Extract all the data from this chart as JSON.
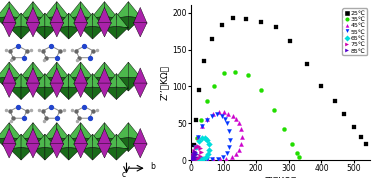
{
  "xlabel": "Z’（KΩ）",
  "ylabel": "Z’’（KΩ）",
  "xlim": [
    0,
    550
  ],
  "ylim": [
    0,
    210
  ],
  "xticks": [
    0,
    100,
    200,
    300,
    400,
    500
  ],
  "yticks": [
    0,
    50,
    100,
    150,
    200
  ],
  "bg_color": "#ffffff",
  "crystal_bg": "#e8f0f8",
  "green_dark": "#1a6b1a",
  "green_light": "#4db84d",
  "purple": "#aa22aa",
  "series": {
    "25C": {
      "color": "black",
      "marker": "s",
      "x": [
        8,
        15,
        25,
        40,
        65,
        95,
        130,
        170,
        215,
        260,
        305,
        355,
        400,
        440,
        470,
        500,
        520,
        535
      ],
      "y": [
        20,
        55,
        95,
        135,
        165,
        183,
        193,
        192,
        188,
        180,
        162,
        130,
        100,
        80,
        62,
        45,
        32,
        22
      ]
    },
    "35C": {
      "color": "#22dd00",
      "marker": "o",
      "x": [
        8,
        18,
        30,
        50,
        70,
        100,
        135,
        175,
        215,
        255,
        285,
        310,
        325,
        330
      ],
      "y": [
        8,
        30,
        55,
        80,
        100,
        118,
        120,
        115,
        95,
        68,
        42,
        22,
        10,
        5
      ]
    },
    "45C": {
      "color": "#cc00cc",
      "marker": "^",
      "x": [
        5,
        12,
        22,
        35,
        50,
        68,
        85,
        100,
        115,
        128,
        138,
        148,
        155,
        158,
        155,
        148,
        138,
        125,
        108,
        88,
        68,
        50,
        35,
        22,
        12
      ],
      "y": [
        5,
        18,
        32,
        46,
        56,
        62,
        65,
        65,
        63,
        60,
        56,
        50,
        42,
        32,
        22,
        14,
        8,
        4,
        2,
        1,
        1,
        1,
        1,
        1,
        1
      ]
    },
    "55C": {
      "color": "#0033ff",
      "marker": "v",
      "x": [
        5,
        12,
        22,
        35,
        50,
        65,
        80,
        95,
        105,
        112,
        118,
        120,
        118,
        110,
        98,
        82,
        65,
        48,
        33,
        20,
        10
      ],
      "y": [
        5,
        18,
        32,
        46,
        55,
        60,
        62,
        60,
        56,
        50,
        40,
        28,
        18,
        10,
        5,
        2,
        1,
        1,
        1,
        1,
        1
      ]
    },
    "65C": {
      "color": "#00dddd",
      "marker": "D",
      "x": [
        3,
        8,
        15,
        25,
        35,
        44,
        50,
        54,
        55,
        52,
        46,
        38,
        28,
        18,
        10,
        5
      ],
      "y": [
        3,
        10,
        18,
        26,
        30,
        30,
        27,
        22,
        14,
        8,
        4,
        2,
        1,
        1,
        1,
        1
      ]
    },
    "75C": {
      "color": "#cc00aa",
      "marker": ">",
      "x": [
        2,
        5,
        10,
        16,
        22,
        27,
        30,
        28,
        22,
        16,
        10,
        5
      ],
      "y": [
        2,
        7,
        13,
        18,
        19,
        17,
        11,
        6,
        3,
        1,
        1,
        1
      ]
    },
    "85C": {
      "color": "#5500cc",
      "marker": ">",
      "x": [
        2,
        5,
        8,
        12,
        15,
        14,
        10,
        6
      ],
      "y": [
        1,
        4,
        8,
        11,
        8,
        4,
        2,
        1
      ]
    }
  },
  "legend_entries": [
    {
      "label": "25℃",
      "color": "black",
      "marker": "s"
    },
    {
      "label": "35℃",
      "color": "#22dd00",
      "marker": "o"
    },
    {
      "label": "45℃",
      "color": "#cc00cc",
      "marker": "^"
    },
    {
      "label": "55℃",
      "color": "#0033ff",
      "marker": "v"
    },
    {
      "label": "65℃",
      "color": "#00dddd",
      "marker": "D"
    },
    {
      "label": "75℃",
      "color": "#cc00aa",
      "marker": ">"
    },
    {
      "label": "85℃",
      "color": "#5500cc",
      "marker": ">"
    }
  ]
}
